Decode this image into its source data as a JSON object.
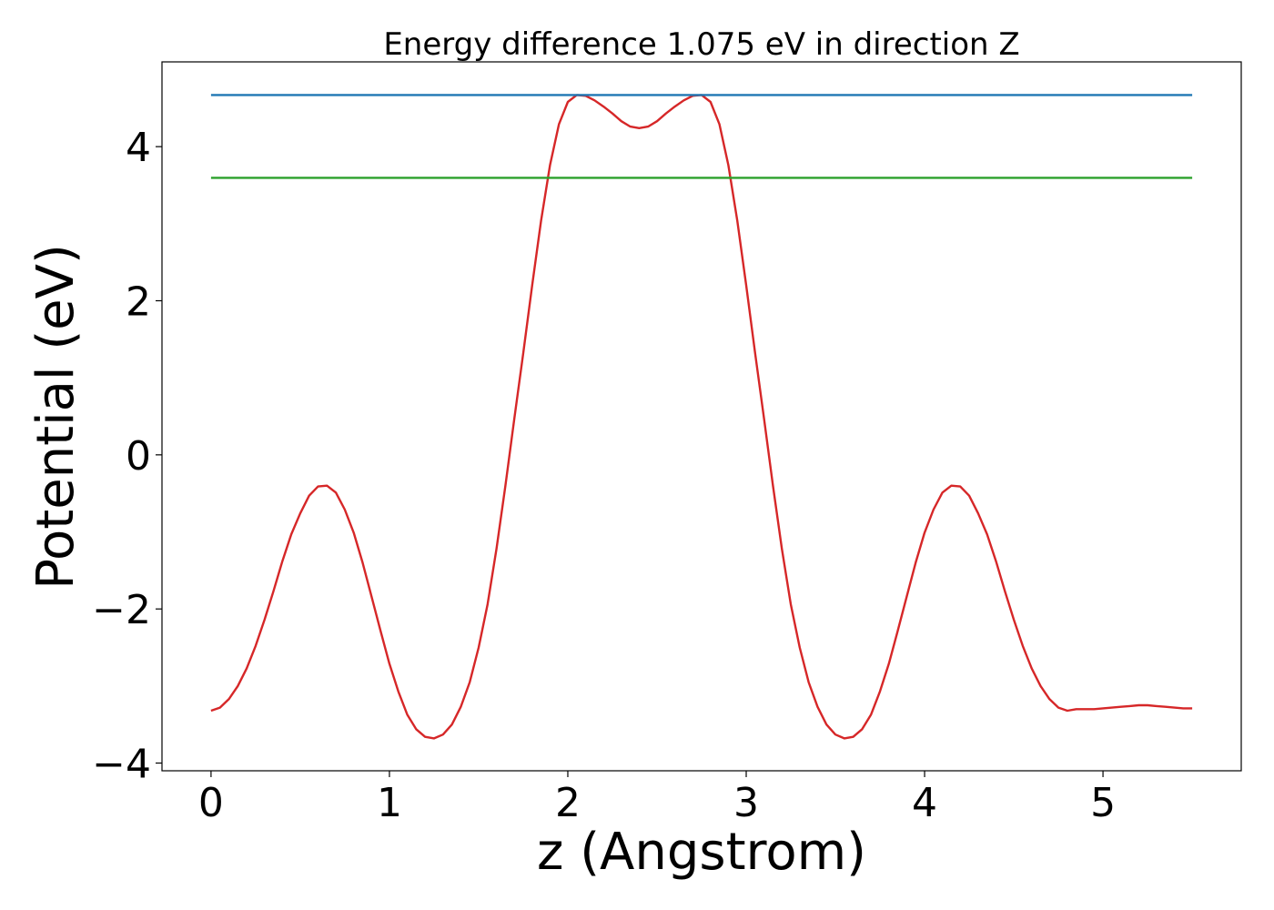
{
  "chart_data": {
    "type": "line",
    "title": "Energy difference 1.075 eV in direction Z",
    "xlabel": "z (Angstrom)",
    "ylabel": "Potential (eV)",
    "xlim": [
      -0.275,
      5.775
    ],
    "ylim": [
      -4.1,
      5.1
    ],
    "xticks": [
      0,
      1,
      2,
      3,
      4,
      5
    ],
    "xtick_labels": [
      "0",
      "1",
      "2",
      "3",
      "4",
      "5"
    ],
    "yticks": [
      -4,
      -2,
      0,
      2,
      4
    ],
    "ytick_labels": [
      "−4",
      "−2",
      "0",
      "2",
      "4"
    ],
    "grid": false,
    "series": [
      {
        "color": "#d62728",
        "x": [
          0,
          0.05,
          0.1,
          0.15,
          0.2,
          0.25,
          0.3,
          0.35,
          0.4,
          0.45,
          0.5,
          0.55,
          0.6,
          0.65,
          0.7,
          0.75,
          0.8,
          0.85,
          0.9,
          0.95,
          1.0,
          1.05,
          1.1,
          1.15,
          1.2,
          1.25,
          1.3,
          1.35,
          1.4,
          1.45,
          1.5,
          1.55,
          1.6,
          1.65,
          1.7,
          1.75,
          1.8,
          1.85,
          1.9,
          1.95,
          2.0,
          2.05,
          2.1,
          2.15,
          2.2,
          2.25,
          2.3,
          2.35,
          2.4,
          2.45,
          2.5,
          2.55,
          2.6,
          2.65,
          2.7,
          2.75,
          2.8,
          2.85,
          2.9,
          2.95,
          3.0,
          3.05,
          3.1,
          3.15,
          3.2,
          3.25,
          3.3,
          3.35,
          3.4,
          3.45,
          3.5,
          3.55,
          3.6,
          3.65,
          3.7,
          3.75,
          3.8,
          3.85,
          3.9,
          3.95,
          4.0,
          4.05,
          4.1,
          4.15,
          4.2,
          4.25,
          4.3,
          4.35,
          4.4,
          4.45,
          4.5,
          4.55,
          4.6,
          4.65,
          4.7,
          4.75,
          4.8,
          4.85,
          4.9,
          4.95,
          5.0,
          5.05,
          5.1,
          5.15,
          5.2,
          5.25,
          5.3,
          5.35,
          5.4,
          5.45,
          5.5
        ],
        "y": [
          -3.32,
          -3.28,
          -3.17,
          -3.0,
          -2.77,
          -2.48,
          -2.14,
          -1.77,
          -1.38,
          -1.03,
          -0.76,
          -0.53,
          -0.41,
          -0.4,
          -0.49,
          -0.71,
          -1.01,
          -1.4,
          -1.84,
          -2.28,
          -2.71,
          -3.07,
          -3.37,
          -3.56,
          -3.66,
          -3.68,
          -3.63,
          -3.5,
          -3.27,
          -2.95,
          -2.5,
          -1.94,
          -1.22,
          -0.4,
          0.47,
          1.32,
          2.2,
          3.04,
          3.76,
          4.29,
          4.58,
          4.67,
          4.66,
          4.6,
          4.52,
          4.43,
          4.33,
          4.26,
          4.24,
          4.26,
          4.33,
          4.43,
          4.52,
          4.6,
          4.66,
          4.67,
          4.58,
          4.29,
          3.76,
          3.04,
          2.2,
          1.32,
          0.47,
          -0.4,
          -1.22,
          -1.94,
          -2.5,
          -2.95,
          -3.27,
          -3.5,
          -3.63,
          -3.68,
          -3.66,
          -3.56,
          -3.37,
          -3.07,
          -2.71,
          -2.28,
          -1.84,
          -1.4,
          -1.01,
          -0.71,
          -0.49,
          -0.4,
          -0.41,
          -0.53,
          -0.76,
          -1.03,
          -1.38,
          -1.77,
          -2.14,
          -2.48,
          -2.77,
          -3.0,
          -3.17,
          -3.28,
          -3.32,
          -3.3,
          -3.3,
          -3.3,
          -3.29,
          -3.28,
          -3.27,
          -3.26,
          -3.25,
          -3.25,
          -3.26,
          -3.27,
          -3.28,
          -3.29,
          -3.29
        ]
      },
      {
        "color": "#1f77b4",
        "x": [
          0,
          5.5
        ],
        "y": [
          4.67,
          4.67
        ]
      },
      {
        "color": "#2ca02c",
        "x": [
          0,
          5.5
        ],
        "y": [
          3.595,
          3.595
        ]
      }
    ]
  }
}
